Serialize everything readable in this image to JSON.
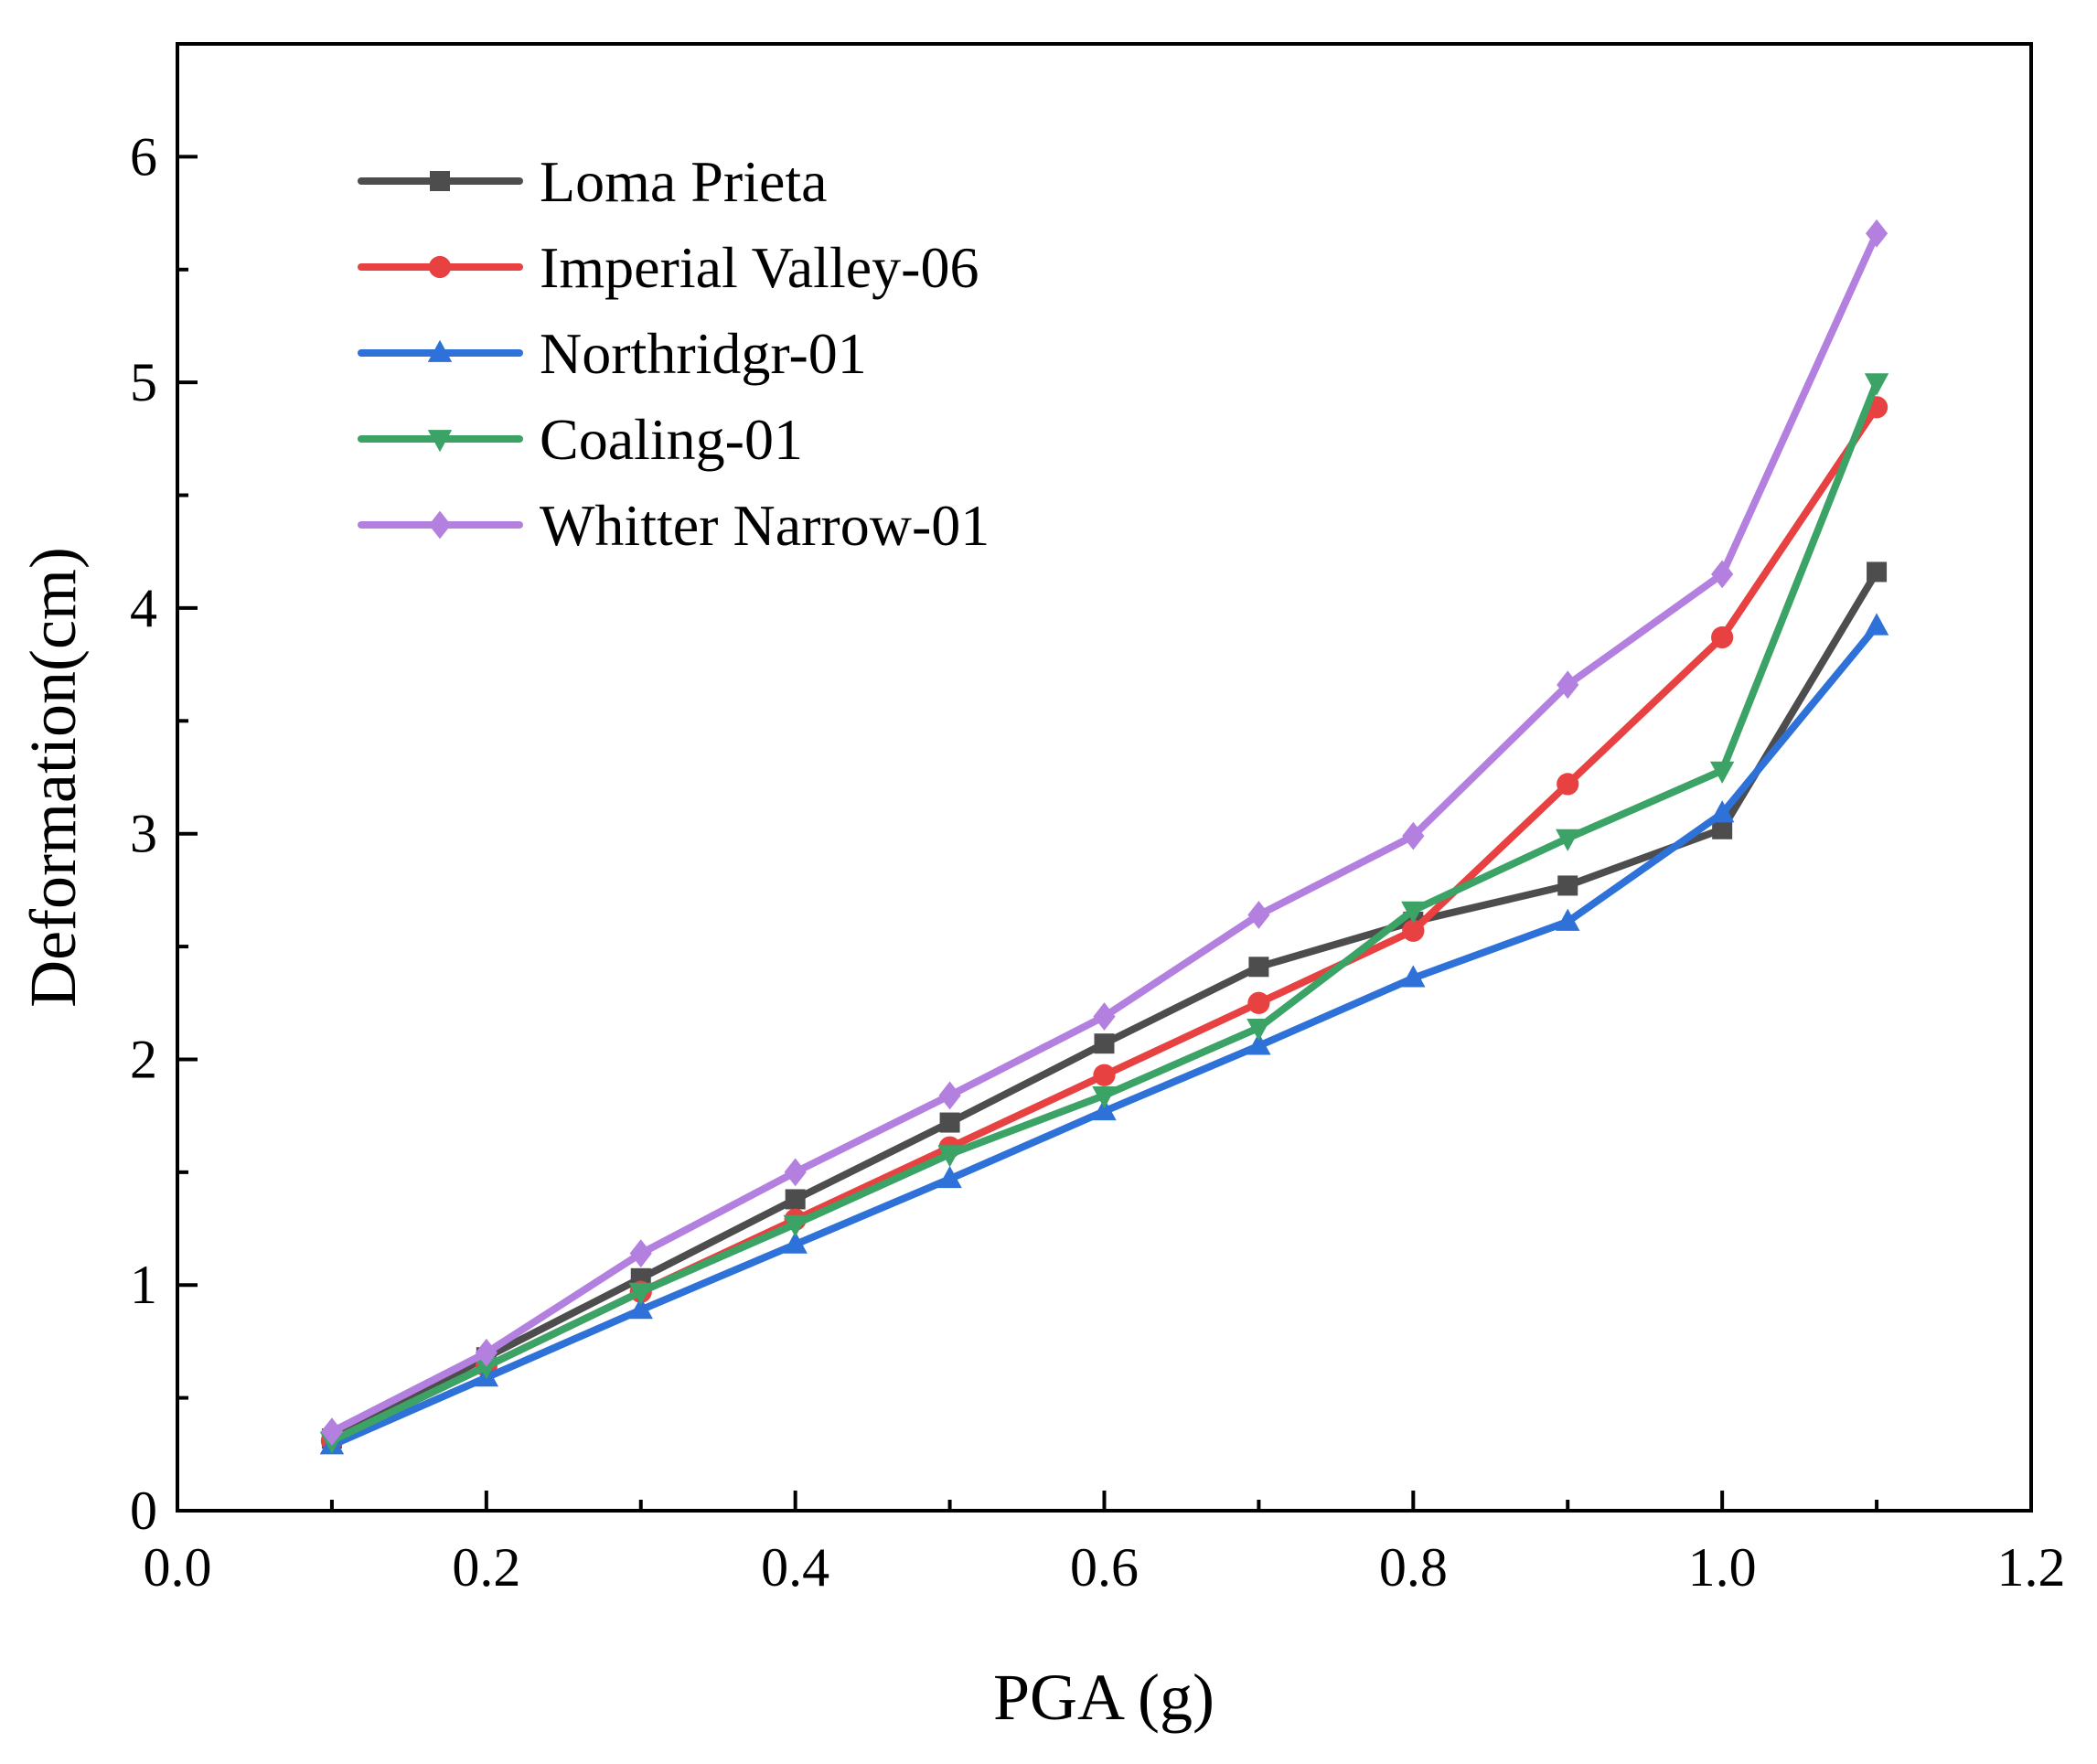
{
  "chart_data": {
    "type": "line",
    "title": "",
    "xlabel": "PGA (g)",
    "ylabel": "Deformation(cm)",
    "xlim": [
      0.0,
      1.2
    ],
    "ylim": [
      0,
      6.5
    ],
    "xticks": [
      0.0,
      0.2,
      0.4,
      0.6,
      0.8,
      1.0,
      1.2
    ],
    "xtick_labels": [
      "0.0",
      "0.2",
      "0.4",
      "0.6",
      "0.8",
      "1.0",
      "1.2"
    ],
    "yticks": [
      0,
      1,
      2,
      3,
      4,
      5,
      6
    ],
    "ytick_labels": [
      "0",
      "1",
      "2",
      "3",
      "4",
      "5",
      "6"
    ],
    "grid": false,
    "legend_position": "top-left",
    "x": [
      0.1,
      0.2,
      0.3,
      0.4,
      0.5,
      0.6,
      0.7,
      0.8,
      0.9,
      1.0,
      1.1
    ],
    "series": [
      {
        "name": "Loma Prieta",
        "color": "#4d4d4d",
        "marker": "square",
        "values": [
          0.32,
          0.68,
          1.03,
          1.38,
          1.72,
          2.07,
          2.41,
          2.61,
          2.77,
          3.02,
          4.16
        ]
      },
      {
        "name": "Imperial Valley-06",
        "color": "#e84141",
        "marker": "circle",
        "values": [
          0.31,
          0.64,
          0.97,
          1.29,
          1.61,
          1.93,
          2.25,
          2.57,
          3.22,
          3.87,
          4.89
        ]
      },
      {
        "name": "Northridgr-01",
        "color": "#2e71d8",
        "marker": "triangle-up",
        "values": [
          0.29,
          0.59,
          0.89,
          1.18,
          1.47,
          1.77,
          2.06,
          2.36,
          2.61,
          3.09,
          3.92
        ]
      },
      {
        "name": "Coaling-01",
        "color": "#3aa365",
        "marker": "triangle-down",
        "values": [
          0.31,
          0.64,
          0.97,
          1.27,
          1.58,
          1.84,
          2.14,
          2.66,
          2.98,
          3.28,
          5.0
        ]
      },
      {
        "name": "Whitter Narrow-01",
        "color": "#b380e0",
        "marker": "diamond",
        "values": [
          0.35,
          0.7,
          1.14,
          1.5,
          1.84,
          2.19,
          2.64,
          2.99,
          3.66,
          4.15,
          5.66
        ]
      }
    ]
  }
}
